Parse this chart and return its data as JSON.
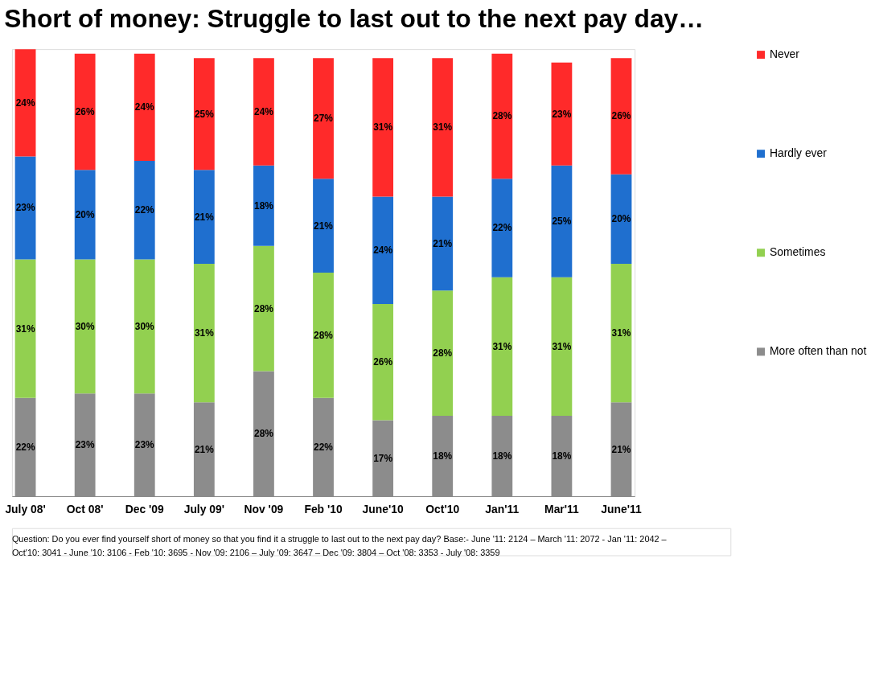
{
  "chart_data": {
    "type": "bar",
    "stacked": true,
    "grid": false,
    "legend": "right",
    "title": "Short of money: Struggle to last out to the next pay day…",
    "categories": [
      "July 08'",
      "Oct 08'",
      "Dec '09",
      "July 09'",
      "Nov '09",
      "Feb '10",
      "June'10",
      "Oct'10",
      "Jan'11",
      "Mar'11",
      "June'11"
    ],
    "series": [
      {
        "name": "More often than not",
        "color": "#8c8c8c",
        "values": [
          22,
          23,
          23,
          21,
          28,
          22,
          17,
          18,
          18,
          18,
          21
        ],
        "value_labels": [
          "22%",
          "23%",
          "23%",
          "21%",
          "28%",
          "22%",
          "17%",
          "18%",
          "18%",
          "18%",
          "21%"
        ]
      },
      {
        "name": "Sometimes",
        "color": "#92d050",
        "values": [
          31,
          30,
          30,
          31,
          28,
          28,
          26,
          28,
          31,
          31,
          31
        ],
        "value_labels": [
          "31%",
          "30%",
          "30%",
          "31%",
          "28%",
          "28%",
          "26%",
          "28%",
          "31%",
          "31%",
          "31%"
        ]
      },
      {
        "name": "Hardly ever",
        "color": "#1f6fcf",
        "values": [
          23,
          20,
          22,
          21,
          18,
          21,
          24,
          21,
          22,
          25,
          20
        ],
        "value_labels": [
          "23%",
          "20%",
          "22%",
          "21%",
          "18%",
          "21%",
          "24%",
          "21%",
          "22%",
          "25%",
          "20%"
        ]
      },
      {
        "name": "Never",
        "color": "#ff2a2a",
        "values": [
          24,
          26,
          24,
          25,
          24,
          27,
          31,
          31,
          28,
          23,
          26
        ],
        "value_labels": [
          "24%",
          "26%",
          "24%",
          "25%",
          "24%",
          "27%",
          "31%",
          "31%",
          "28%",
          "23%",
          "26%"
        ]
      }
    ],
    "annotations": [
      "Question: Do you ever find yourself short of money so that you find it a struggle to last out to the next pay day? Base:- June '11: 2124 – March '11: 2072 - Jan '11: 2042 –",
      "Oct'10: 3041 - June '10: 3106 - Feb '10: 3695 - Nov '09: 2106 – July '09: 3647 – Dec '09: 3804 – Oct '08: 3353 - July '08: 3359"
    ]
  }
}
